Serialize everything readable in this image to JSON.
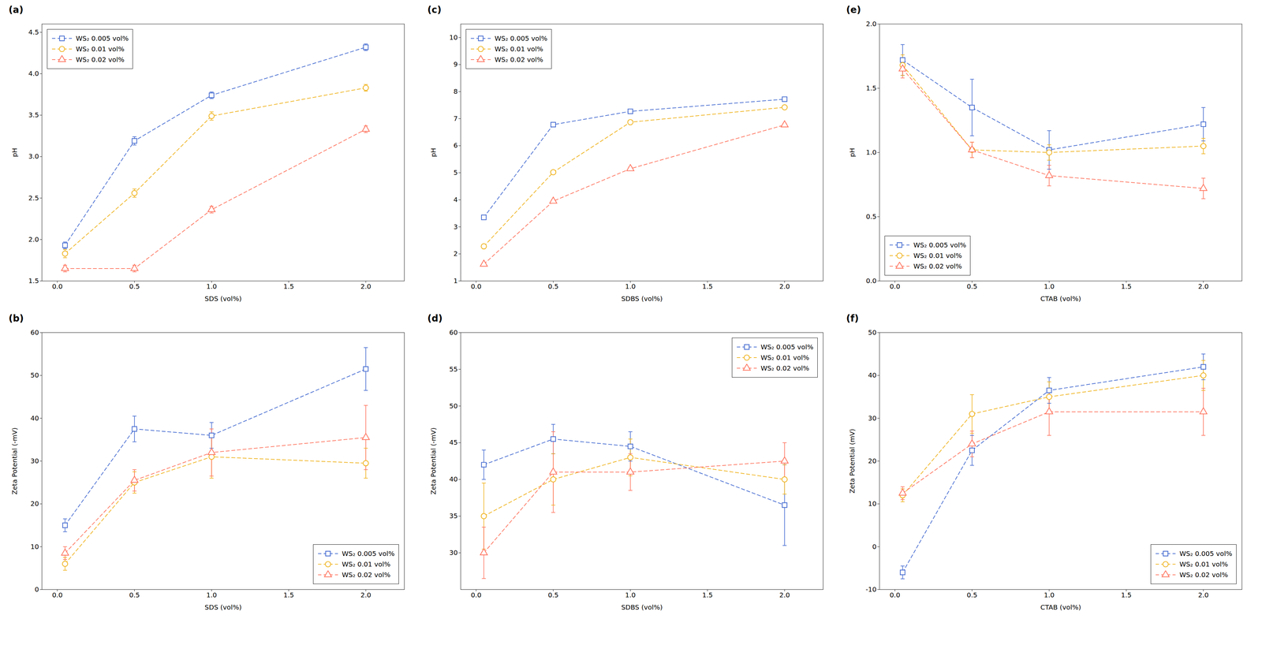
{
  "chart_data": [
    {
      "type": "line",
      "title": "(a)",
      "x_label": "SDS (vol%)",
      "y_label": "pH",
      "x": [
        0.05,
        0.5,
        1.0,
        2.0
      ],
      "xlim": [
        -0.1,
        2.25
      ],
      "xticks": [
        {
          "value": 0.0,
          "label": "0.0"
        },
        0.5,
        {
          "value": 1.0,
          "label": "1.0"
        },
        1.5,
        {
          "value": 2.0,
          "label": "2.0"
        }
      ],
      "ylim": [
        1.5,
        4.6
      ],
      "yticks": [
        1.5,
        {
          "value": 2.0,
          "label": "2.0"
        },
        2.5,
        {
          "value": 3.0,
          "label": "3.0"
        },
        3.5,
        {
          "value": 4.0,
          "label": "4.0"
        },
        4.5
      ],
      "legend": "upper left",
      "grid": false,
      "series": [
        {
          "name": "WS₂ 0.005 vol%",
          "marker": "square",
          "line_style": "dashed",
          "values": [
            1.93,
            3.19,
            3.74,
            4.32
          ],
          "yerr": [
            0.04,
            0.05,
            0.04,
            0.04
          ]
        },
        {
          "name": "WS₂ 0.01 vol%",
          "marker": "circle",
          "line_style": "dashed",
          "values": [
            1.83,
            2.56,
            3.49,
            3.83
          ],
          "yerr": [
            0.05,
            0.05,
            0.05,
            0.04
          ]
        },
        {
          "name": "WS₂ 0.02 vol%",
          "marker": "triangle",
          "line_style": "dashed",
          "values": [
            1.65,
            1.65,
            2.36,
            3.33
          ],
          "yerr": [
            0.04,
            0.04,
            0.04,
            0.04
          ]
        }
      ]
    },
    {
      "type": "line",
      "title": "(c)",
      "x_label": "SDBS (vol%)",
      "y_label": "pH",
      "x": [
        0.05,
        0.5,
        1.0,
        2.0
      ],
      "xlim": [
        -0.1,
        2.25
      ],
      "xticks": [
        {
          "value": 0.0,
          "label": "0.0"
        },
        0.5,
        {
          "value": 1.0,
          "label": "1.0"
        },
        1.5,
        {
          "value": 2.0,
          "label": "2.0"
        }
      ],
      "ylim": [
        1.0,
        10.5
      ],
      "yticks": [
        1,
        2,
        3,
        4,
        5,
        6,
        7,
        8,
        9,
        10
      ],
      "legend": "upper left",
      "grid": false,
      "series": [
        {
          "name": "WS₂ 0.005 vol%",
          "marker": "square",
          "line_style": "dashed",
          "values": [
            3.35,
            6.78,
            7.27,
            7.72
          ],
          "yerr": [
            0.06,
            0.07,
            0.06,
            0.06
          ]
        },
        {
          "name": "WS₂ 0.01 vol%",
          "marker": "circle",
          "line_style": "dashed",
          "values": [
            2.28,
            5.02,
            6.87,
            7.42
          ],
          "yerr": [
            0.05,
            0.06,
            0.06,
            0.06
          ]
        },
        {
          "name": "WS₂ 0.02 vol%",
          "marker": "triangle",
          "line_style": "dashed",
          "values": [
            1.62,
            3.95,
            5.15,
            6.77
          ],
          "yerr": [
            0.05,
            0.05,
            0.06,
            0.06
          ]
        }
      ]
    },
    {
      "type": "line",
      "title": "(e)",
      "x_label": "CTAB (vol%)",
      "y_label": "pH",
      "x": [
        0.05,
        0.5,
        1.0,
        2.0
      ],
      "xlim": [
        -0.1,
        2.25
      ],
      "xticks": [
        {
          "value": 0.0,
          "label": "0.0"
        },
        0.5,
        {
          "value": 1.0,
          "label": "1.0"
        },
        1.5,
        {
          "value": 2.0,
          "label": "2.0"
        }
      ],
      "ylim": [
        0.0,
        2.0
      ],
      "yticks": [
        {
          "value": 0.0,
          "label": "0.0"
        },
        0.5,
        {
          "value": 1.0,
          "label": "1.0"
        },
        1.5,
        {
          "value": 2.0,
          "label": "2.0"
        }
      ],
      "legend": "lower left",
      "grid": false,
      "series": [
        {
          "name": "WS₂ 0.005 vol%",
          "marker": "square",
          "line_style": "dashed",
          "values": [
            1.72,
            1.35,
            1.02,
            1.22
          ],
          "yerr": [
            0.12,
            0.22,
            0.15,
            0.13
          ]
        },
        {
          "name": "WS₂ 0.01 vol%",
          "marker": "circle",
          "line_style": "dashed",
          "values": [
            1.68,
            1.02,
            1.0,
            1.05
          ],
          "yerr": [
            0.08,
            0.06,
            0.06,
            0.06
          ]
        },
        {
          "name": "WS₂ 0.02 vol%",
          "marker": "triangle",
          "line_style": "dashed",
          "values": [
            1.65,
            1.02,
            0.82,
            0.72
          ],
          "yerr": [
            0.07,
            0.06,
            0.08,
            0.08
          ]
        }
      ]
    },
    {
      "type": "line",
      "title": "(b)",
      "x_label": "SDS (vol%)",
      "y_label": "Zeta Potential (-mV)",
      "x": [
        0.05,
        0.5,
        1.0,
        2.0
      ],
      "xlim": [
        -0.1,
        2.25
      ],
      "xticks": [
        {
          "value": 0.0,
          "label": "0.0"
        },
        0.5,
        {
          "value": 1.0,
          "label": "1.0"
        },
        1.5,
        {
          "value": 2.0,
          "label": "2.0"
        }
      ],
      "ylim": [
        0,
        60
      ],
      "yticks": [
        0,
        10,
        20,
        30,
        40,
        50,
        60
      ],
      "legend": "lower right",
      "grid": false,
      "series": [
        {
          "name": "WS₂ 0.005 vol%",
          "marker": "square",
          "line_style": "dashed",
          "values": [
            15.0,
            37.5,
            36.0,
            51.5
          ],
          "yerr": [
            1.5,
            3.0,
            3.0,
            5.0
          ]
        },
        {
          "name": "WS₂ 0.01 vol%",
          "marker": "circle",
          "line_style": "dashed",
          "values": [
            6.0,
            25.0,
            31.0,
            29.5
          ],
          "yerr": [
            1.5,
            2.5,
            5.0,
            3.5
          ]
        },
        {
          "name": "WS₂ 0.02 vol%",
          "marker": "triangle",
          "line_style": "dashed",
          "values": [
            8.5,
            25.5,
            32.0,
            35.5
          ],
          "yerr": [
            1.5,
            2.5,
            5.5,
            7.5
          ]
        }
      ]
    },
    {
      "type": "line",
      "title": "(d)",
      "x_label": "SDBS (vol%)",
      "y_label": "Zeta Potential (-mV)",
      "x": [
        0.05,
        0.5,
        1.0,
        2.0
      ],
      "xlim": [
        -0.1,
        2.25
      ],
      "xticks": [
        {
          "value": 0.0,
          "label": "0.0"
        },
        0.5,
        {
          "value": 1.0,
          "label": "1.0"
        },
        1.5,
        {
          "value": 2.0,
          "label": "2.0"
        }
      ],
      "ylim": [
        25,
        60
      ],
      "yticks": [
        30,
        35,
        40,
        45,
        50,
        55,
        60
      ],
      "legend": "upper right",
      "grid": false,
      "series": [
        {
          "name": "WS₂ 0.005 vol%",
          "marker": "square",
          "line_style": "dashed",
          "values": [
            42.0,
            45.5,
            44.5,
            36.5
          ],
          "yerr": [
            2.0,
            2.0,
            2.0,
            5.5
          ]
        },
        {
          "name": "WS₂ 0.01 vol%",
          "marker": "circle",
          "line_style": "dashed",
          "values": [
            35.0,
            40.0,
            43.0,
            40.0
          ],
          "yerr": [
            4.5,
            3.5,
            2.5,
            2.0
          ]
        },
        {
          "name": "WS₂ 0.02 vol%",
          "marker": "triangle",
          "line_style": "dashed",
          "values": [
            30.0,
            41.0,
            41.0,
            42.5
          ],
          "yerr": [
            3.5,
            5.5,
            2.5,
            2.5
          ]
        }
      ]
    },
    {
      "type": "line",
      "title": "(f)",
      "x_label": "CTAB (vol%)",
      "y_label": "Zeta Potential (mV)",
      "x": [
        0.05,
        0.5,
        1.0,
        2.0
      ],
      "xlim": [
        -0.1,
        2.25
      ],
      "xticks": [
        {
          "value": 0.0,
          "label": "0.0"
        },
        0.5,
        {
          "value": 1.0,
          "label": "1.0"
        },
        1.5,
        {
          "value": 2.0,
          "label": "2.0"
        }
      ],
      "ylim": [
        -10,
        50
      ],
      "yticks": [
        -10,
        0,
        10,
        20,
        30,
        40,
        50
      ],
      "legend": "lower right",
      "grid": false,
      "series": [
        {
          "name": "WS₂ 0.005 vol%",
          "marker": "square",
          "line_style": "dashed",
          "values": [
            -6.0,
            22.5,
            36.5,
            42.0
          ],
          "yerr": [
            1.5,
            3.5,
            3.0,
            3.0
          ]
        },
        {
          "name": "WS₂ 0.01 vol%",
          "marker": "circle",
          "line_style": "dashed",
          "values": [
            12.0,
            31.0,
            35.0,
            40.0
          ],
          "yerr": [
            1.5,
            4.5,
            3.5,
            3.5
          ]
        },
        {
          "name": "WS₂ 0.02 vol%",
          "marker": "triangle",
          "line_style": "dashed",
          "values": [
            12.5,
            24.0,
            31.5,
            31.5
          ],
          "yerr": [
            1.5,
            3.0,
            5.5,
            5.5
          ]
        }
      ]
    }
  ]
}
